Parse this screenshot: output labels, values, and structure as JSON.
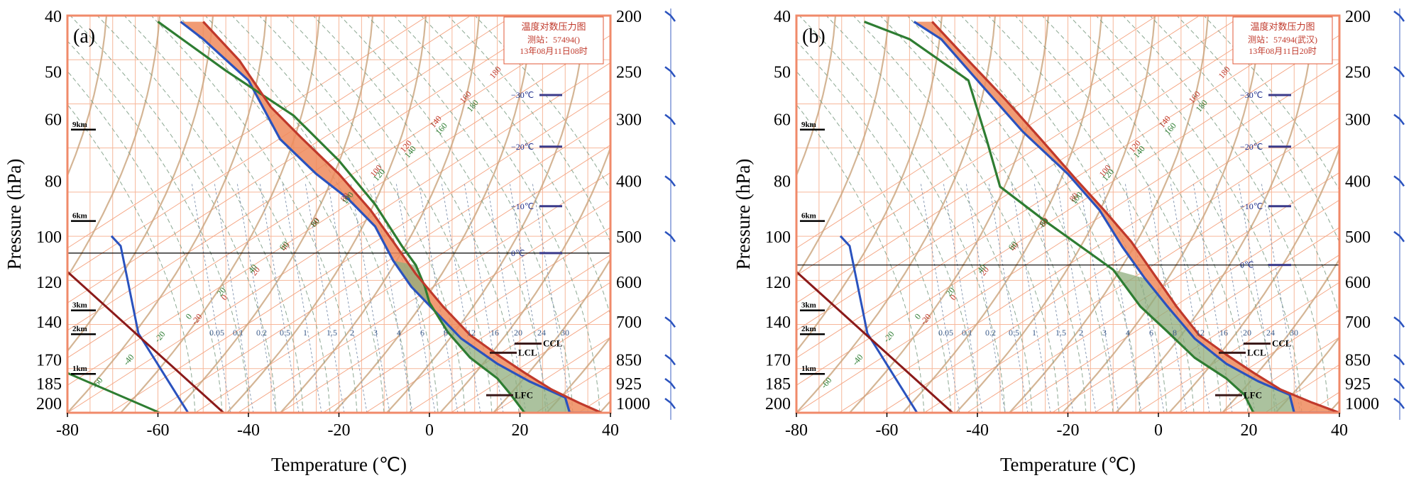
{
  "chart_data": [
    {
      "type": "line",
      "panel_label": "(a)",
      "xlabel": "Temperature (℃)",
      "ylabel": "Pressure (hPa)",
      "x_ticks": [
        "-80",
        "-60",
        "-40",
        "-20",
        "0",
        "20",
        "40"
      ],
      "xlim": [
        -80,
        40
      ],
      "left_y_ticks": [
        "40",
        "50",
        "60",
        "80",
        "100",
        "120",
        "140",
        "170",
        "185",
        "200"
      ],
      "right_y_ticks": [
        "200",
        "250",
        "300",
        "400",
        "500",
        "600",
        "700",
        "850",
        "925",
        "1000"
      ],
      "legend_box": {
        "title": "温度对数压力图",
        "station": "测站：57494()",
        "time": "13年08月11日08时"
      },
      "height_marks": [
        "9km",
        "6km",
        "3km",
        "2km",
        "1km"
      ],
      "isotherm_marks": [
        "−30℃",
        "−20℃",
        "−10℃",
        "0℃"
      ],
      "level_labels": [
        "CCL",
        "LCL",
        "LFC"
      ],
      "dry_adiabat_labels": [
        "-20",
        "0",
        "20",
        "40",
        "60",
        "80",
        "100",
        "120",
        "140",
        "160",
        "180"
      ],
      "moist_adiabat_labels": [
        "-60",
        "-40",
        "-20",
        "0",
        "20",
        "40",
        "60",
        "80",
        "100",
        "120",
        "140",
        "160",
        "180"
      ],
      "mixing_ratio_labels": [
        "0.05",
        "0.1",
        "0.2",
        "0.5",
        "1",
        "1.5",
        "2",
        "3",
        "4",
        "6",
        "8",
        "12",
        "16",
        "20",
        "24",
        "30"
      ],
      "series": [
        {
          "points": [
            [
              38,
              1000
            ],
            [
              31,
              1000
            ],
            [
              30,
              940
            ],
            [
              22,
              880
            ],
            [
              15,
              820
            ],
            [
              7,
              740
            ],
            [
              1,
              660
            ],
            [
              -4,
              600
            ],
            [
              -8,
              540
            ],
            [
              -12,
              470
            ],
            [
              -18,
              420
            ],
            [
              -25,
              380
            ],
            [
              -33,
              330
            ],
            [
              -40,
              260
            ],
            [
              -50,
              220
            ],
            [
              -55,
              205
            ]
          ],
          "color": "#2a52be"
        },
        {
          "points": [
            [
              21,
              1000
            ],
            [
              18,
              930
            ],
            [
              15,
              870
            ],
            [
              9,
              800
            ],
            [
              4,
              720
            ],
            [
              0,
              640
            ],
            [
              -1,
              600
            ],
            [
              -3,
              550
            ],
            [
              -6,
              510
            ],
            [
              -12,
              430
            ],
            [
              -20,
              360
            ],
            [
              -30,
              300
            ],
            [
              -45,
              250
            ],
            [
              -60,
              205
            ]
          ],
          "color": "#2e7d32"
        },
        {
          "points": [
            [
              38,
              1000
            ],
            [
              33,
              960
            ],
            [
              27,
              910
            ],
            [
              21,
              850
            ],
            [
              15,
              790
            ],
            [
              9,
              730
            ],
            [
              3,
              650
            ],
            [
              -3,
              570
            ],
            [
              -8,
              500
            ],
            [
              -13,
              440
            ],
            [
              -20,
              380
            ],
            [
              -28,
              330
            ],
            [
              -35,
              290
            ],
            [
              -42,
              240
            ],
            [
              -50,
              205
            ]
          ],
          "color": "#c0392b"
        }
      ]
    },
    {
      "type": "line",
      "panel_label": "(b)",
      "xlabel": "Temperature (℃)",
      "ylabel": "Pressure (hPa)",
      "x_ticks": [
        "-80",
        "-60",
        "-40",
        "-20",
        "0",
        "20",
        "40"
      ],
      "xlim": [
        -80,
        40
      ],
      "left_y_ticks": [
        "40",
        "50",
        "60",
        "80",
        "100",
        "120",
        "140",
        "170",
        "185",
        "200"
      ],
      "right_y_ticks": [
        "200",
        "250",
        "300",
        "400",
        "500",
        "600",
        "700",
        "850",
        "925",
        "1000"
      ],
      "legend_box": {
        "title": "温度对数压力图",
        "station": "测站：57494(武汉)",
        "time": "13年08月11日20时"
      },
      "height_marks": [
        "9km",
        "6km",
        "3km",
        "2km",
        "1km"
      ],
      "isotherm_marks": [
        "−30℃",
        "−20℃",
        "−10℃",
        "0℃"
      ],
      "level_labels": [
        "CCL",
        "LCL",
        "LFC"
      ],
      "dry_adiabat_labels": [
        "-20",
        "0",
        "20",
        "40",
        "60",
        "80",
        "100",
        "120",
        "140",
        "160",
        "180"
      ],
      "moist_adiabat_labels": [
        "-60",
        "-40",
        "-20",
        "0",
        "20",
        "40",
        "60",
        "80",
        "100",
        "120",
        "140",
        "160",
        "180"
      ],
      "mixing_ratio_labels": [
        "0.05",
        "0.1",
        "0.2",
        "0.5",
        "1",
        "1.5",
        "2",
        "3",
        "4",
        "6",
        "8",
        "12",
        "16",
        "20",
        "24",
        "30"
      ],
      "series": [
        {
          "points": [
            [
              40,
              1000
            ],
            [
              30,
              1000
            ],
            [
              29,
              930
            ],
            [
              22,
              880
            ],
            [
              15,
              820
            ],
            [
              8,
              740
            ],
            [
              2,
              650
            ],
            [
              -3,
              580
            ],
            [
              -8,
              510
            ],
            [
              -13,
              440
            ],
            [
              -20,
              380
            ],
            [
              -30,
              320
            ],
            [
              -40,
              260
            ],
            [
              -48,
              220
            ],
            [
              -54,
              205
            ]
          ],
          "color": "#2a52be"
        },
        {
          "points": [
            [
              21,
              1000
            ],
            [
              19,
              930
            ],
            [
              15,
              870
            ],
            [
              8,
              800
            ],
            [
              2,
              720
            ],
            [
              -4,
              650
            ],
            [
              -10,
              560
            ],
            [
              -25,
              460
            ],
            [
              -35,
              400
            ],
            [
              -38,
              330
            ],
            [
              -42,
              260
            ],
            [
              -55,
              220
            ],
            [
              -65,
              205
            ]
          ],
          "color": "#2e7d32"
        },
        {
          "points": [
            [
              40,
              1000
            ],
            [
              34,
              960
            ],
            [
              27,
              910
            ],
            [
              21,
              850
            ],
            [
              15,
              790
            ],
            [
              9,
              730
            ],
            [
              4,
              650
            ],
            [
              -1,
              570
            ],
            [
              -6,
              500
            ],
            [
              -12,
              440
            ],
            [
              -18,
              390
            ],
            [
              -26,
              330
            ],
            [
              -34,
              280
            ],
            [
              -42,
              240
            ],
            [
              -50,
              205
            ]
          ],
          "color": "#c0392b"
        }
      ]
    }
  ]
}
